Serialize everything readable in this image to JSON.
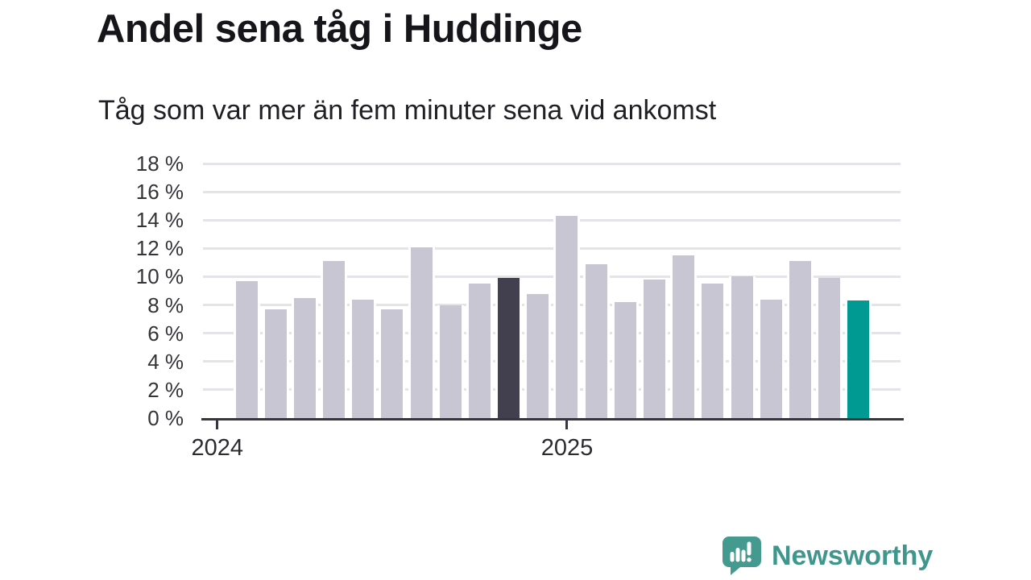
{
  "title": "Andel sena tåg i Huddinge",
  "subtitle": "Tåg som var mer än fem minuter sena vid ankomst",
  "chart_data": {
    "type": "bar",
    "title": "Andel sena tåg i Huddinge",
    "subtitle": "Tåg som var mer än fem minuter sena vid ankomst",
    "unit": "%",
    "ylim": [
      0,
      18
    ],
    "y_tick_step": 2,
    "y_tick_labels": [
      "0 %",
      "2 %",
      "4 %",
      "6 %",
      "8 %",
      "10 %",
      "12 %",
      "14 %",
      "16 %",
      "18 %"
    ],
    "x_ticks": [
      {
        "label": "2024",
        "bar_index": -1
      },
      {
        "label": "2025",
        "bar_index": 11
      }
    ],
    "grid": "horizontal",
    "legend": "none",
    "values": [
      9.7,
      7.7,
      8.5,
      11.1,
      8.4,
      7.7,
      12.1,
      8.0,
      9.5,
      9.9,
      8.8,
      14.3,
      10.9,
      8.2,
      9.8,
      11.5,
      9.5,
      10.0,
      8.4,
      11.1,
      9.9,
      8.3
    ],
    "highlight_dark_index": 9,
    "highlight_latest_index": 21,
    "colors": {
      "bar_default": "#c8c6d2",
      "bar_highlight_dark": "#423f4e",
      "bar_highlight_latest": "#009a93",
      "gridline": "#e4e4e8",
      "axis": "#37363e",
      "text": "#333338"
    }
  },
  "branding": {
    "logo_text": "Newsworthy",
    "logo_color": "#459a90",
    "logo_icon": "speech-bubble-bar-chart-exclamation"
  }
}
